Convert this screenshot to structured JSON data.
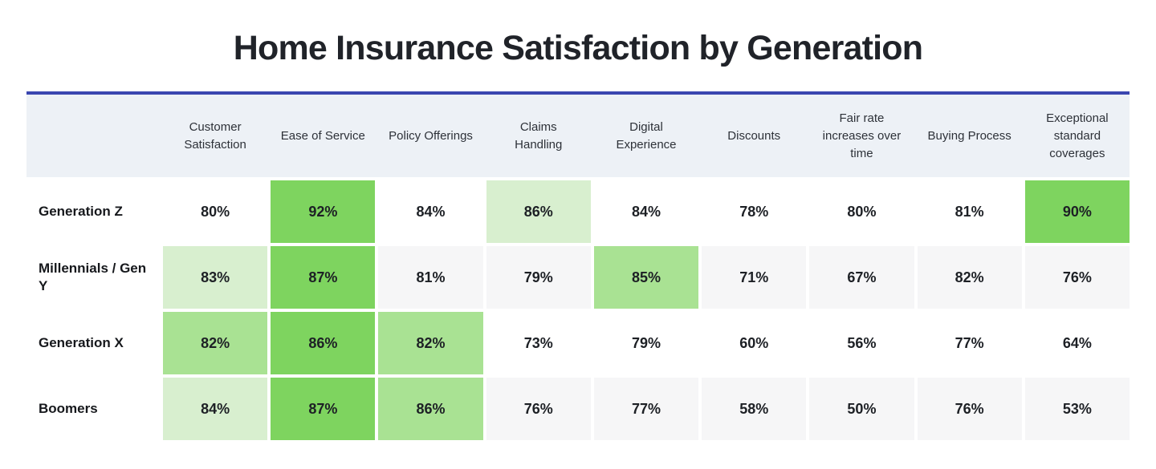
{
  "title": "Home Insurance Satisfaction by Generation",
  "chart_data": {
    "type": "heatmap",
    "title": "Home Insurance Satisfaction by Generation",
    "unit": "%",
    "columns": [
      "Customer Satisfaction",
      "Ease of Service",
      "Policy Offerings",
      "Claims Handling",
      "Digital Experience",
      "Discounts",
      "Fair rate increases over time",
      "Buying Process",
      "Exceptional standard coverages"
    ],
    "rows": [
      {
        "label": "Generation Z",
        "values": [
          80,
          92,
          84,
          86,
          84,
          78,
          80,
          81,
          90
        ],
        "highlights": [
          null,
          "high",
          null,
          "low",
          null,
          null,
          null,
          null,
          "high"
        ]
      },
      {
        "label": "Millennials / Gen Y",
        "values": [
          83,
          87,
          81,
          79,
          85,
          71,
          67,
          82,
          76
        ],
        "highlights": [
          "low",
          "high",
          null,
          null,
          "mid",
          null,
          null,
          null,
          null
        ]
      },
      {
        "label": "Generation X",
        "values": [
          82,
          86,
          82,
          73,
          79,
          60,
          56,
          77,
          64
        ],
        "highlights": [
          "mid",
          "high",
          "mid",
          null,
          null,
          null,
          null,
          null,
          null
        ]
      },
      {
        "label": "Boomers",
        "values": [
          84,
          87,
          86,
          76,
          77,
          58,
          50,
          76,
          53
        ],
        "highlights": [
          "low",
          "high",
          "mid",
          null,
          null,
          null,
          null,
          null,
          null
        ]
      }
    ],
    "highlight_colors": {
      "high": "#7ed45f",
      "mid": "#a9e293",
      "low": "#d8efcf"
    },
    "zebra_rows": [
      1,
      3
    ],
    "zebra_row_color": "#f6f6f7",
    "plain_row_color": "#ffffff",
    "header_bg": "#edf1f6",
    "divider_color": "#3a46b0"
  }
}
